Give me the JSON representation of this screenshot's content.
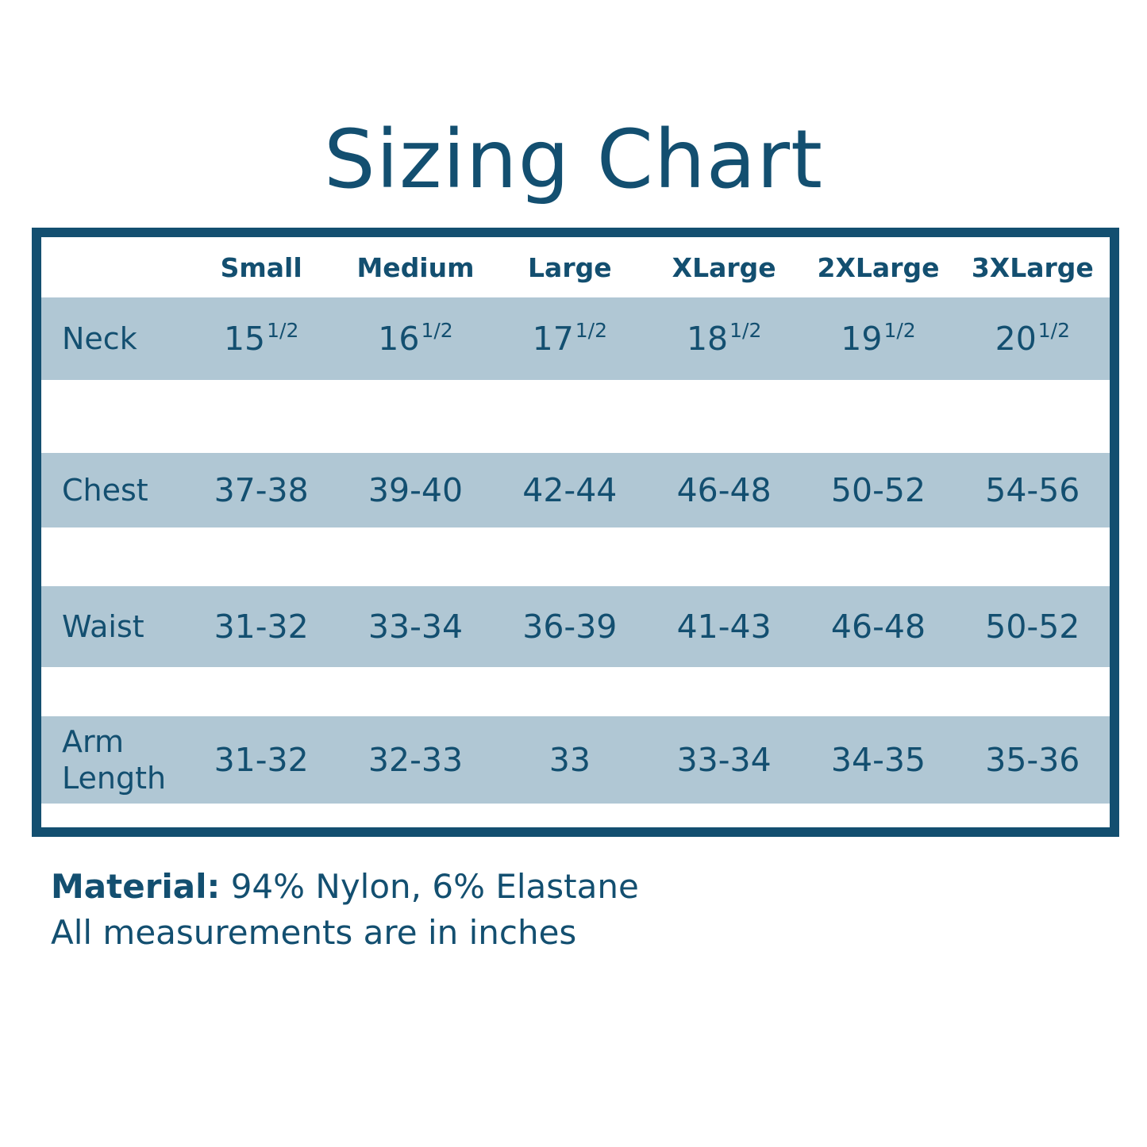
{
  "colors": {
    "accent": "#134f70",
    "band": "#b0c7d4",
    "background": "#ffffff"
  },
  "chart_data": {
    "type": "table",
    "title": "Sizing Chart",
    "columns": [
      "Small",
      "Medium",
      "Large",
      "XLarge",
      "2XLarge",
      "3XLarge"
    ],
    "rows": [
      {
        "label": "Neck",
        "values": [
          "15 1/2",
          "16 1/2",
          "17 1/2",
          "18 1/2",
          "19 1/2",
          "20 1/2"
        ]
      },
      {
        "label": "Chest",
        "values": [
          "37-38",
          "39-40",
          "42-44",
          "46-48",
          "50-52",
          "54-56"
        ]
      },
      {
        "label": "Waist",
        "values": [
          "31-32",
          "33-34",
          "36-39",
          "41-43",
          "46-48",
          "50-52"
        ]
      },
      {
        "label": "Arm Length",
        "values": [
          "31-32",
          "32-33",
          "33",
          "33-34",
          "34-35",
          "35-36"
        ]
      }
    ],
    "notes": [
      "Material: 94% Nylon, 6% Elastane",
      "All measurements are in inches"
    ],
    "units": "inches"
  },
  "display": {
    "title": "Sizing Chart",
    "header": [
      "Small",
      "Medium",
      "Large",
      "XLarge",
      "2XLarge",
      "3XLarge"
    ],
    "rows": [
      {
        "label": "Neck",
        "cells": [
          {
            "b": "15",
            "s": "1/2"
          },
          {
            "b": "16",
            "s": "1/2"
          },
          {
            "b": "17",
            "s": "1/2"
          },
          {
            "b": "18",
            "s": "1/2"
          },
          {
            "b": "19",
            "s": "1/2"
          },
          {
            "b": "20",
            "s": "1/2"
          }
        ]
      },
      {
        "label": "Chest",
        "cells": [
          {
            "b": "37-38"
          },
          {
            "b": "39-40"
          },
          {
            "b": "42-44"
          },
          {
            "b": "46-48"
          },
          {
            "b": "50-52"
          },
          {
            "b": "54-56"
          }
        ]
      },
      {
        "label": "Waist",
        "cells": [
          {
            "b": "31-32"
          },
          {
            "b": "33-34"
          },
          {
            "b": "36-39"
          },
          {
            "b": "41-43"
          },
          {
            "b": "46-48"
          },
          {
            "b": "50-52"
          }
        ]
      },
      {
        "label": "Arm\nLength",
        "cells": [
          {
            "b": "31-32"
          },
          {
            "b": "32-33"
          },
          {
            "b": "33"
          },
          {
            "b": "33-34"
          },
          {
            "b": "34-35"
          },
          {
            "b": "35-36"
          }
        ]
      }
    ],
    "footer": {
      "material_label": "Material:",
      "material_rest": " 94% Nylon, 6% Elastane",
      "note": "All measurements are in inches"
    }
  }
}
